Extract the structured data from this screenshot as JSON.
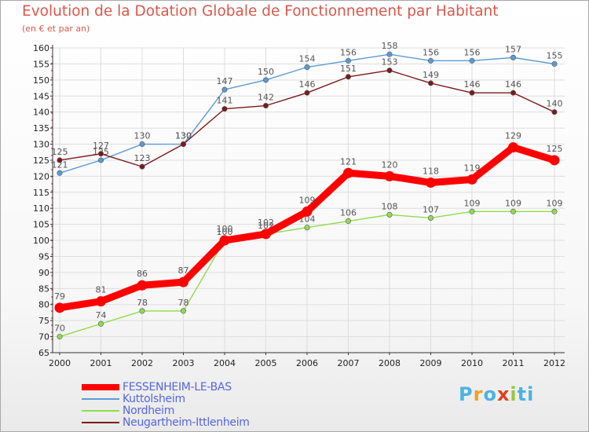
{
  "chart_data": {
    "type": "line",
    "title": "Evolution de la Dotation Globale de Fonctionnement par Habitant",
    "subtitle": "(en € et par an)",
    "xlabel": "",
    "ylabel": "",
    "x": [
      "2000",
      "2001",
      "2002",
      "2003",
      "2004",
      "2005",
      "2006",
      "2007",
      "2008",
      "2009",
      "2010",
      "2011",
      "2012"
    ],
    "ylim": [
      65,
      160
    ],
    "yticks": [
      65,
      70,
      75,
      80,
      85,
      90,
      95,
      100,
      105,
      110,
      115,
      120,
      125,
      130,
      135,
      140,
      145,
      150,
      155,
      160
    ],
    "grid": true,
    "legend_position": "bottom-left",
    "series": [
      {
        "name": "Kuttolsheim",
        "color": "#5b9bd5",
        "values": [
          121,
          125,
          130,
          130,
          147,
          150,
          154,
          156,
          158,
          156,
          156,
          157,
          155
        ]
      },
      {
        "name": "Neugartheim-Ittlenheim",
        "color": "#7b1a1a",
        "values": [
          125,
          127,
          123,
          130,
          141,
          142,
          146,
          151,
          153,
          149,
          146,
          146,
          140
        ]
      },
      {
        "name": "Nordheim",
        "color": "#90dc50",
        "values": [
          70,
          74,
          78,
          78,
          100,
          102,
          104,
          106,
          108,
          107,
          109,
          109,
          109
        ]
      },
      {
        "name": "FESSENHEIM-LE-BAS",
        "color": "#ff0000",
        "values": [
          79,
          81,
          86,
          87,
          100,
          102,
          109,
          121,
          120,
          118,
          119,
          129,
          125
        ]
      }
    ],
    "legend_order": [
      "FESSENHEIM-LE-BAS",
      "Kuttolsheim",
      "Nordheim",
      "Neugartheim-Ittlenheim"
    ]
  },
  "brand": {
    "letters": [
      "P",
      "r",
      "o",
      "x",
      "i",
      "t",
      "i"
    ]
  }
}
